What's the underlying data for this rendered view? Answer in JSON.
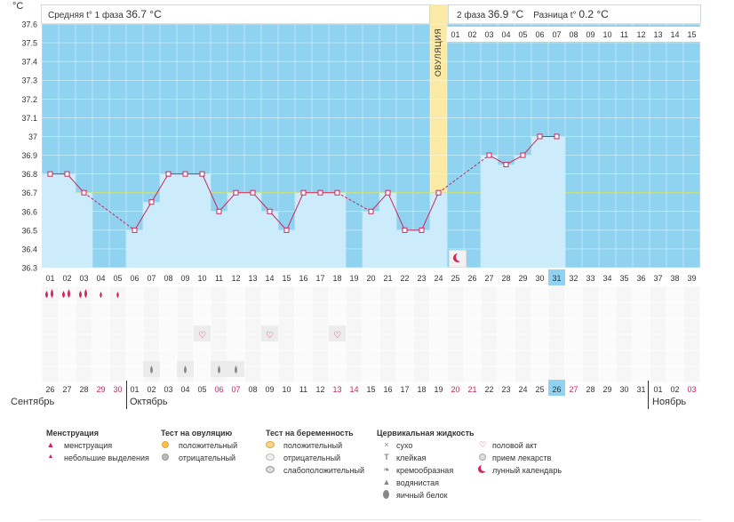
{
  "axis_unit": "°C",
  "header": {
    "phase1_label": "Средняя t° 1 фаза",
    "phase1_value": "36.7 °C",
    "phase2_label": "2 фаза",
    "phase2_value": "36.9 °C",
    "diff_label": "Разница t°",
    "diff_value": "0.2 °C"
  },
  "ovulation_label": "ОВУЛЯЦИЯ",
  "phase2_day_numbers": [
    "01",
    "02",
    "03",
    "04",
    "05",
    "06",
    "07",
    "08",
    "09",
    "10",
    "11",
    "12",
    "13",
    "14",
    "15"
  ],
  "cycle_days": [
    "01",
    "02",
    "03",
    "04",
    "05",
    "06",
    "07",
    "08",
    "09",
    "10",
    "11",
    "12",
    "13",
    "14",
    "15",
    "16",
    "17",
    "18",
    "19",
    "20",
    "21",
    "22",
    "23",
    "24",
    "25",
    "26",
    "27",
    "28",
    "29",
    "30",
    "31",
    "32",
    "33",
    "34",
    "35",
    "36",
    "37",
    "38",
    "39"
  ],
  "current_cycle_day": "31",
  "dates": [
    "26",
    "27",
    "28",
    "29",
    "30",
    "01",
    "02",
    "03",
    "04",
    "05",
    "06",
    "07",
    "08",
    "09",
    "10",
    "11",
    "12",
    "13",
    "14",
    "15",
    "16",
    "17",
    "18",
    "19",
    "20",
    "21",
    "22",
    "23",
    "24",
    "25",
    "26",
    "27",
    "28",
    "29",
    "30",
    "31",
    "01",
    "02",
    "03"
  ],
  "date_colors": [
    "#333",
    "#333",
    "#333",
    "#d0245a",
    "#d0245a",
    "#333",
    "#333",
    "#333",
    "#333",
    "#333",
    "#d0245a",
    "#d0245a",
    "#333",
    "#333",
    "#333",
    "#333",
    "#333",
    "#d0245a",
    "#d0245a",
    "#333",
    "#333",
    "#333",
    "#333",
    "#333",
    "#d0245a",
    "#d0245a",
    "#333",
    "#333",
    "#333",
    "#333",
    "#333",
    "#d0245a",
    "#333",
    "#333",
    "#333",
    "#333",
    "#333",
    "#333",
    "#d0245a"
  ],
  "today_date_index": 30,
  "months": [
    "Сентябрь",
    "Октябрь",
    "Ноябрь"
  ],
  "colors": {
    "plot_bg": "#8fd3f0",
    "bar_fill": "#cdecfb",
    "line": "#d0245a",
    "coverline": "#c8e07a",
    "ovulation": "#fbe9a6",
    "today_cell": "#8fd3f0"
  },
  "rows": {
    "menstruation": [
      2,
      2,
      2,
      1,
      1,
      0,
      0,
      0,
      0,
      0,
      0,
      0,
      0,
      0,
      0,
      0,
      0,
      0,
      0,
      0,
      0,
      0,
      0,
      0,
      0,
      0,
      0,
      0,
      0,
      0,
      0,
      0,
      0,
      0,
      0,
      0,
      0,
      0,
      0
    ],
    "intercourse_days": [
      "10",
      "14",
      "18"
    ],
    "cervical_fluid_days": [
      "07",
      "09",
      "11",
      "12"
    ],
    "moon_day": "25"
  },
  "chart_data": {
    "type": "line",
    "title": "",
    "xlabel": "",
    "ylabel": "°C",
    "ylim": [
      36.3,
      37.6
    ],
    "y_ticks": [
      "36.3",
      "36.4",
      "36.5",
      "36.6",
      "36.7",
      "36.8",
      "36.9",
      "37",
      "37.1",
      "37.2",
      "37.3",
      "37.4",
      "37.5",
      "37.6"
    ],
    "coverline": 36.7,
    "ovulation_day": 24,
    "x": [
      1,
      2,
      3,
      6,
      7,
      8,
      9,
      10,
      11,
      12,
      13,
      14,
      15,
      16,
      17,
      18,
      20,
      21,
      22,
      23,
      24,
      27,
      28,
      29,
      30,
      31
    ],
    "y": [
      36.8,
      36.8,
      36.7,
      36.5,
      36.65,
      36.8,
      36.8,
      36.8,
      36.6,
      36.7,
      36.7,
      36.6,
      36.5,
      36.7,
      36.7,
      36.7,
      36.6,
      36.7,
      36.5,
      36.5,
      36.7,
      36.9,
      36.85,
      36.9,
      37.0,
      37.0
    ],
    "series": [
      {
        "values": [
          36.8,
          36.8,
          36.7,
          36.5,
          36.65,
          36.8,
          36.8,
          36.8,
          36.6,
          36.7,
          36.7,
          36.6,
          36.5,
          36.7,
          36.7,
          36.7,
          36.6,
          36.7,
          36.5,
          36.5,
          36.7,
          36.9,
          36.85,
          36.9,
          37.0,
          37.0
        ]
      }
    ],
    "grid": true
  },
  "legend": {
    "menstruation": {
      "title": "Менструация",
      "items": [
        "менструация",
        "небольшие выделения"
      ]
    },
    "ovulation_test": {
      "title": "Тест на овуляцию",
      "items": [
        "положительный",
        "отрицательный"
      ]
    },
    "pregnancy_test": {
      "title": "Тест на беременность",
      "items": [
        "положительный",
        "отрицательный",
        "слабоположительный"
      ]
    },
    "cervical": {
      "title": "Цервикальная жидкость",
      "items": [
        "сухо",
        "клейкая",
        "кремообразная",
        "водянистая",
        "яичный белок"
      ]
    },
    "other": {
      "items": [
        "половой акт",
        "прием лекарств",
        "лунный календарь"
      ]
    }
  }
}
